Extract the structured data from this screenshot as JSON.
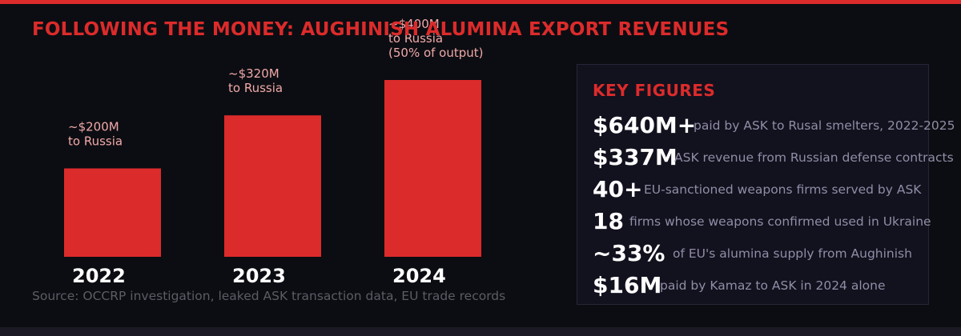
{
  "header": {
    "title": "FOLLOWING THE MONEY: AUGHINISH ALUMINA EXPORT REVENUES"
  },
  "chart_data": {
    "type": "bar",
    "title": "FOLLOWING THE MONEY: AUGHINISH ALUMINA EXPORT REVENUES",
    "xlabel": "",
    "ylabel": "",
    "unit": "$M",
    "categories": [
      "2022",
      "2023",
      "2024"
    ],
    "values": [
      200,
      320,
      400
    ],
    "ylim": [
      0,
      400
    ],
    "grid": false,
    "legend": "none",
    "annotations": [
      [
        "~$200M",
        "to Russia"
      ],
      [
        "~$320M",
        "to Russia"
      ],
      [
        "~$400M",
        "to Russia",
        "(50% of output)"
      ]
    ],
    "bar_color": "#dc2b2b",
    "note_color": "#f0a9a9",
    "label_color": "#ffffff"
  },
  "source": "Source: OCCRP investigation, leaked ASK transaction data, EU trade records",
  "key_figures": {
    "title": "KEY FIGURES",
    "items": [
      {
        "value": "$640M+",
        "desc": "paid by ASK to Rusal smelters, 2022-2025"
      },
      {
        "value": "$337M",
        "desc": "ASK revenue from Russian defense contracts"
      },
      {
        "value": "40+",
        "desc": "EU-sanctioned weapons firms served by ASK"
      },
      {
        "value": "18",
        "desc": "firms whose weapons confirmed used in Ukraine"
      },
      {
        "value": "~33%",
        "desc": "of EU's alumina supply from Aughinish"
      },
      {
        "value": "$16M",
        "desc": "paid by Kamaz to ASK in 2024 alone"
      }
    ]
  },
  "colors": {
    "accent": "#dc2b2b",
    "background": "#0c0d12",
    "panel": "#12111e",
    "muted_text": "#908da6"
  }
}
